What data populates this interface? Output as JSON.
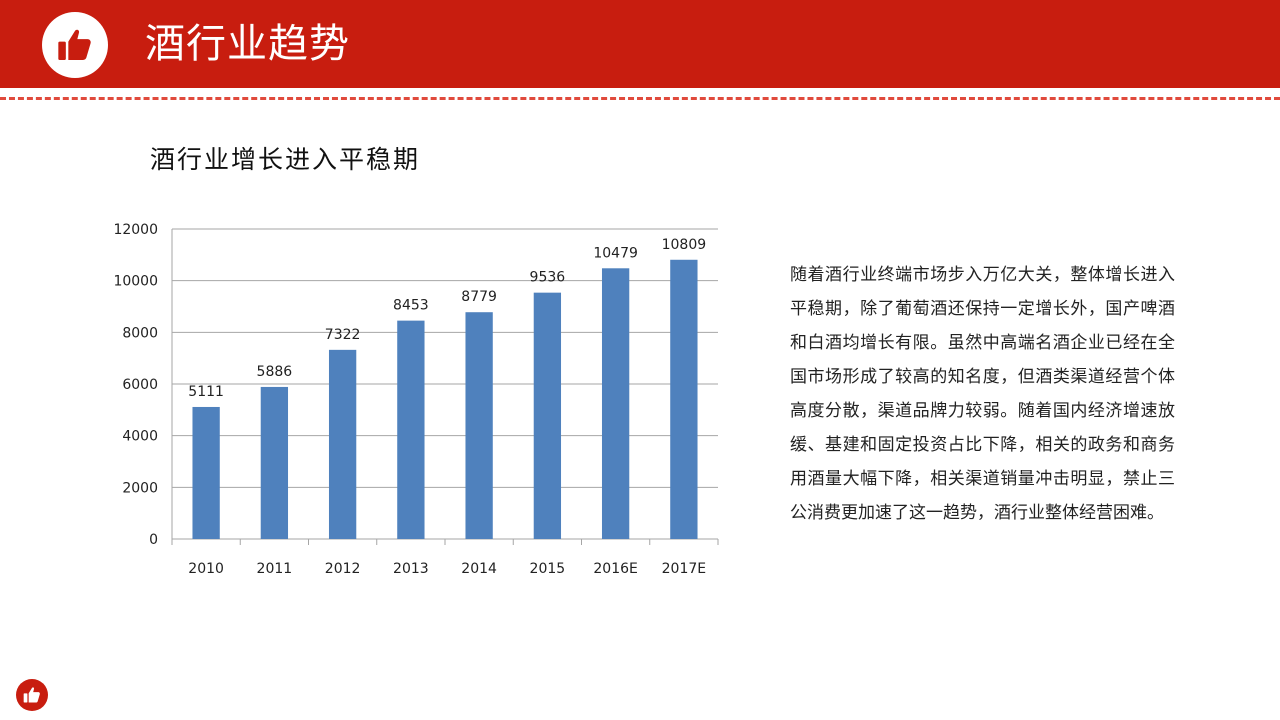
{
  "header": {
    "title": "酒行业趋势",
    "logo_icon": "thumbs-up-icon",
    "bar_color": "#c81d0f"
  },
  "chart_title": "酒行业增长进入平稳期",
  "chart_data": {
    "type": "bar",
    "categories": [
      "2010",
      "2011",
      "2012",
      "2013",
      "2014",
      "2015",
      "2016E",
      "2017E"
    ],
    "values": [
      5111,
      5886,
      7322,
      8453,
      8779,
      9536,
      10479,
      10809
    ],
    "yticks": [
      "0",
      "2000",
      "4000",
      "6000",
      "8000",
      "10000",
      "12000"
    ],
    "ylim": [
      0,
      12000
    ],
    "grid": true,
    "bar_color": "#4f81bd",
    "title": "",
    "xlabel": "",
    "ylabel": ""
  },
  "description": "随着酒行业终端市场步入万亿大关，整体增长进入平稳期，除了葡萄酒还保持一定增长外，国产啤酒和白酒均增长有限。虽然中高端名酒企业已经在全国市场形成了较高的知名度，但酒类渠道经营个体高度分散，渠道品牌力较弱。随着国内经济增速放缓、基建和固定投资占比下降，相关的政务和商务用酒量大幅下降，相关渠道销量冲击明显，禁止三公消费更加速了这一趋势，酒行业整体经营困难。",
  "footer": {
    "logo_icon": "thumbs-up-icon"
  }
}
